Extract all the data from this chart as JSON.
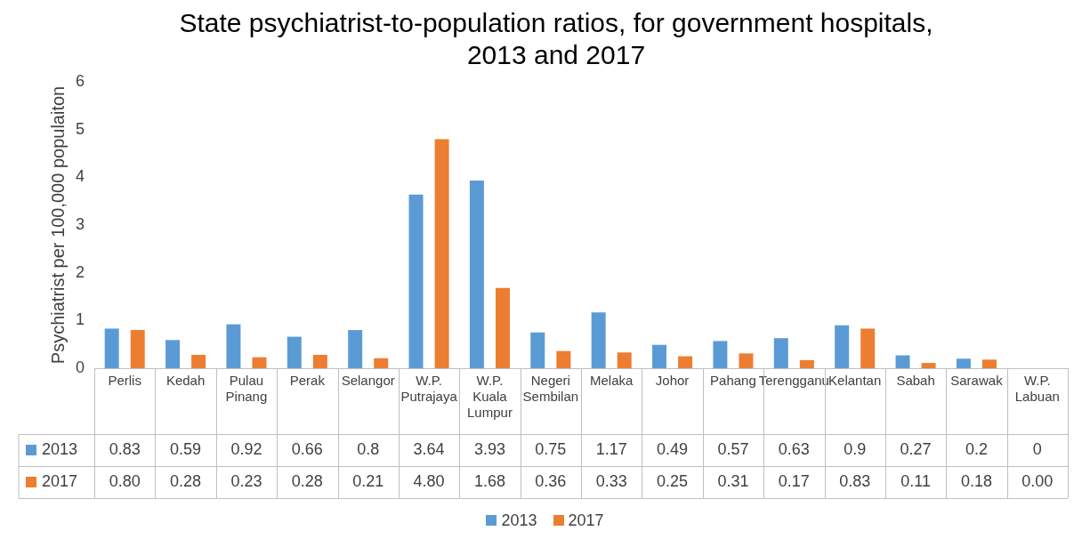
{
  "chart_data": {
    "type": "bar",
    "title": "State psychiatrist-to-population ratios, for government hospitals, 2013 and 2017",
    "ylabel": "Psychiatrist per 100,000 populaiton",
    "categories": [
      "Perlis",
      "Kedah",
      "Pulau Pinang",
      "Perak",
      "Selangor",
      "W.P. Putrajaya",
      "W.P. Kuala Lumpur",
      "Negeri Sembilan",
      "Melaka",
      "Johor",
      "Pahang",
      "Terengganu",
      "Kelantan",
      "Sabah",
      "Sarawak",
      "W.P. Labuan"
    ],
    "series": [
      {
        "name": "2013",
        "color": "#5b9bd5",
        "values": [
          0.83,
          0.59,
          0.92,
          0.66,
          0.8,
          3.64,
          3.93,
          0.75,
          1.17,
          0.49,
          0.57,
          0.63,
          0.9,
          0.27,
          0.2,
          0
        ],
        "value_labels": [
          "0.83",
          "0.59",
          "0.92",
          "0.66",
          "0.8",
          "3.64",
          "3.93",
          "0.75",
          "1.17",
          "0.49",
          "0.57",
          "0.63",
          "0.9",
          "0.27",
          "0.2",
          "0"
        ]
      },
      {
        "name": "2017",
        "color": "#ed7d31",
        "values": [
          0.8,
          0.28,
          0.23,
          0.28,
          0.21,
          4.8,
          1.68,
          0.36,
          0.33,
          0.25,
          0.31,
          0.17,
          0.83,
          0.11,
          0.18,
          0
        ],
        "value_labels": [
          "0.80",
          "0.28",
          "0.23",
          "0.28",
          "0.21",
          "4.80",
          "1.68",
          "0.36",
          "0.33",
          "0.25",
          "0.31",
          "0.17",
          "0.83",
          "0.11",
          "0.18",
          "0.00"
        ]
      }
    ],
    "ylim": [
      0,
      6
    ],
    "yticks": [
      0,
      1,
      2,
      3,
      4,
      5,
      6
    ],
    "grid": false,
    "legend": "bottom"
  }
}
